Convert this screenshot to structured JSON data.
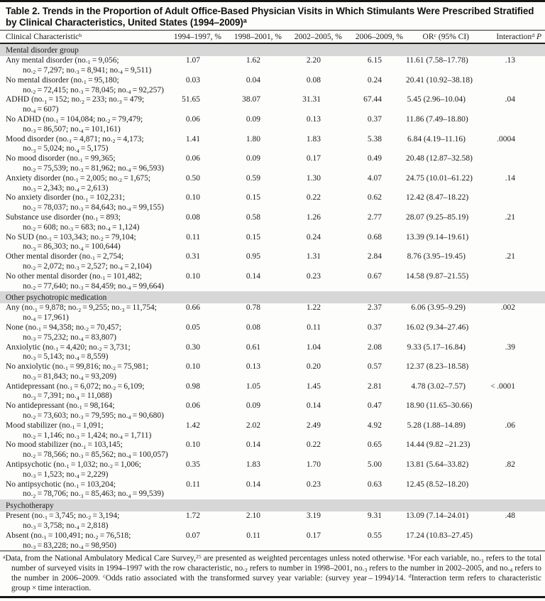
{
  "colors": {
    "section-bg": "#d7d7d7",
    "rule": "#161616",
    "text": "#1b1b1b"
  },
  "table": {
    "title": "Table 2. Trends in the Proportion of Adult Office-Based Physician Visits in Which Stimulants Were Prescribed Stratified by Clinical Characteristics, United States (1994–2009)^a^",
    "columns": [
      "Clinical Characteristic^b^",
      "1994–1997, %",
      "1998–2001, %",
      "2002–2005, %",
      "2006–2009, %",
      "OR^c^ (95% CI)",
      "Interaction^d^ *P*"
    ],
    "sections": [
      {
        "header": "Mental disorder group",
        "rows": [
          {
            "label_line1": "Any mental disorder (no.~1~ = 9,056;",
            "label_line2": "no.~2~ = 7,297; no.~3~ = 8,941; no.~4~ = 9,511)",
            "v1": "1.07",
            "v2": "1.62",
            "v3": "2.20",
            "v4": "6.15",
            "or": "11.61 (7.58–17.78)",
            "p": ".13"
          },
          {
            "label_line1": "No mental disorder (no.~1~ = 95,180;",
            "label_line2": "no.~2~ = 72,415; no.~3~ = 78,045; no.~4~ = 92,257)",
            "v1": "0.03",
            "v2": "0.04",
            "v3": "0.08",
            "v4": "0.24",
            "or": "20.41 (10.92–38.18)",
            "p": ""
          },
          {
            "label_line1": "ADHD (no.~1~ = 152; no.~2~ = 233; no.~3~ = 479;",
            "label_line2": "no.~4~ = 607)",
            "v1": "51.65",
            "v2": "38.07",
            "v3": "31.31",
            "v4": "67.44",
            "or": "5.45 (2.96–10.04)",
            "p": ".04"
          },
          {
            "label_line1": "No ADHD (no.~1~ = 104,084; no.~2~ = 79,479;",
            "label_line2": "no.~3~ = 86,507; no.~4~ = 101,161)",
            "v1": "0.06",
            "v2": "0.09",
            "v3": "0.13",
            "v4": "0.37",
            "or": "11.86 (7.49–18.80)",
            "p": ""
          },
          {
            "label_line1": "Mood disorder (no.~1~ = 4,871; no.~2~ = 4,173;",
            "label_line2": "no.~3~ = 5,024; no.~4~ = 5,175)",
            "v1": "1.41",
            "v2": "1.80",
            "v3": "1.83",
            "v4": "5.38",
            "or": "6.84 (4.19–11.16)",
            "p": ".0004"
          },
          {
            "label_line1": "No mood disorder (no.~1~ = 99,365;",
            "label_line2": "no.~2~ = 75,539; no.~3~ = 81,962; no.~4~ = 96,593)",
            "v1": "0.06",
            "v2": "0.09",
            "v3": "0.17",
            "v4": "0.49",
            "or": "20.48 (12.87–32.58)",
            "p": ""
          },
          {
            "label_line1": "Anxiety disorder (no.~1~ = 2,005; no.~2~ = 1,675;",
            "label_line2": "no.~3~ = 2,343; no.~4~ = 2,613)",
            "v1": "0.50",
            "v2": "0.59",
            "v3": "1.30",
            "v4": "4.07",
            "or": "24.75 (10.01–61.22)",
            "p": ".14"
          },
          {
            "label_line1": "No anxiety disorder (no.~1~ = 102,231;",
            "label_line2": "no.~2~ = 78,037; no.~3~ = 84,643; no.~4~ = 99,155)",
            "v1": "0.10",
            "v2": "0.15",
            "v3": "0.22",
            "v4": "0.62",
            "or": "12.42 (8.47–18.22)",
            "p": ""
          },
          {
            "label_line1": "Substance use disorder (no.~1~ = 893;",
            "label_line2": "no.~2~ = 608; no.~3~ = 683; no.~4~ = 1,124)",
            "v1": "0.08",
            "v2": "0.58",
            "v3": "1.26",
            "v4": "2.77",
            "or": "28.07 (9.25–85.19)",
            "p": ".21"
          },
          {
            "label_line1": "No SUD (no.~1~ = 103,343; no.~2~ = 79,104;",
            "label_line2": "no.~3~ = 86,303; no.~4~ = 100,644)",
            "v1": "0.11",
            "v2": "0.15",
            "v3": "0.24",
            "v4": "0.68",
            "or": "13.39 (9.14–19.61)",
            "p": ""
          },
          {
            "label_line1": "Other mental disorder (no.~1~ = 2,754;",
            "label_line2": "no.~2~ = 2,072; no.~3~ = 2,527; no.~4~ = 2,104)",
            "v1": "0.31",
            "v2": "0.95",
            "v3": "1.31",
            "v4": "2.84",
            "or": "8.76 (3.95–19.45)",
            "p": ".21"
          },
          {
            "label_line1": "No other mental disorder (no.~1~ = 101,482;",
            "label_line2": "no.~2~ = 77,640; no.~3~ = 84,459; no.~4~ = 99,664)",
            "v1": "0.10",
            "v2": "0.14",
            "v3": "0.23",
            "v4": "0.67",
            "or": "14.58 (9.87–21.55)",
            "p": ""
          }
        ]
      },
      {
        "header": "Other psychotropic medication",
        "rows": [
          {
            "label_line1": "Any (no.~1~ = 9,878; no.~2~ = 9,255; no.~3~ = 11,754;",
            "label_line2": "no.~4~ = 17,961)",
            "v1": "0.66",
            "v2": "0.78",
            "v3": "1.22",
            "v4": "2.37",
            "or": "6.06 (3.95–9.29)",
            "p": ".002"
          },
          {
            "label_line1": "None (no.~1~ = 94,358; no.~2~ = 70,457;",
            "label_line2": "no.~3~ = 75,232; no.~4~ = 83,807)",
            "v1": "0.05",
            "v2": "0.08",
            "v3": "0.11",
            "v4": "0.37",
            "or": "16.02 (9.34–27.46)",
            "p": ""
          },
          {
            "label_line1": "Anxiolytic (no.~1~ = 4,420; no.~2~ = 3,731;",
            "label_line2": "no.~3~ = 5,143; no.~4~ = 8,559)",
            "v1": "0.30",
            "v2": "0.61",
            "v3": "1.04",
            "v4": "2.08",
            "or": "9.33 (5.17–16.84)",
            "p": ".39"
          },
          {
            "label_line1": "No anxiolytic (no.~1~ = 99,816; no.~2~ = 75,981;",
            "label_line2": "no.~3~ = 81,843; no.~4~ = 93,209)",
            "v1": "0.10",
            "v2": "0.13",
            "v3": "0.20",
            "v4": "0.57",
            "or": "12.37 (8.23–18.58)",
            "p": ""
          },
          {
            "label_line1": "Antidepressant (no.~1~ = 6,072; no.~2~ = 6,109;",
            "label_line2": "no.~3~ = 7,391; no.~4~ = 11,088)",
            "v1": "0.98",
            "v2": "1.05",
            "v3": "1.45",
            "v4": "2.81",
            "or": "4.78 (3.02–7.57)",
            "p": "< .0001"
          },
          {
            "label_line1": "No antidepressant (no.~1~ = 98,164;",
            "label_line2": "no.~2~ = 73,603; no.~3~ = 79,595; no.~4~ = 90,680)",
            "v1": "0.06",
            "v2": "0.09",
            "v3": "0.14",
            "v4": "0.47",
            "or": "18.90 (11.65–30.66)",
            "p": ""
          },
          {
            "label_line1": "Mood stabilizer (no.~1~ = 1,091;",
            "label_line2": "no.~2~ = 1,146; no.~3~ = 1,424; no.~4~ = 1,711)",
            "v1": "1.42",
            "v2": "2.02",
            "v3": "2.49",
            "v4": "4.92",
            "or": "5.28 (1.88–14.89)",
            "p": ".06"
          },
          {
            "label_line1": "No mood stabilizer (no.~1~ = 103,145;",
            "label_line2": "no.~2~ = 78,566; no.~3~ = 85,562; no.~4~ = 100,057)",
            "v1": "0.10",
            "v2": "0.14",
            "v3": "0.22",
            "v4": "0.65",
            "or": "14.44 (9.82 –21.23)",
            "p": ""
          },
          {
            "label_line1": "Antipsychotic (no.~1~ = 1,032; no.~2~ = 1,006;",
            "label_line2": "no.~3~ = 1,523; no.~4~ = 2,229)",
            "v1": "0.35",
            "v2": "1.83",
            "v3": "1.70",
            "v4": "5.00",
            "or": "13.81 (5.64–33.82)",
            "p": ".82"
          },
          {
            "label_line1": "No antipsychotic (no.~1~ = 103,204;",
            "label_line2": "no.~2~ = 78,706; no.~3~ = 85,463; no.~4~ = 99,539)",
            "v1": "0.11",
            "v2": "0.14",
            "v3": "0.23",
            "v4": "0.63",
            "or": "12.45 (8.52–18.20)",
            "p": ""
          }
        ]
      },
      {
        "header": "Psychotherapy",
        "rows": [
          {
            "label_line1": "Present (no.~1~ = 3,745; no.~2~ = 3,194;",
            "label_line2": "no.~3~ = 3,758; no.~4~ = 2,818)",
            "v1": "1.72",
            "v2": "2.10",
            "v3": "3.19",
            "v4": "9.31",
            "or": "13.09 (7.14–24.01)",
            "p": ".48"
          },
          {
            "label_line1": "Absent (no.~1~ = 100,491; no.~2~ = 76,518;",
            "label_line2": "no.~3~ = 83,228; no.~4~ = 98,950)",
            "v1": "0.07",
            "v2": "0.11",
            "v3": "0.17",
            "v4": "0.55",
            "or": "17.24 (10.83–27.45)",
            "p": ""
          }
        ]
      }
    ],
    "footnote": "^a^Data, from the National Ambulatory Medical Care Survey,^25^ are presented as weighted percentages unless noted otherwise. ^b^For each variable, no.~1~ refers to the total number of surveyed visits in 1994–1997 with the row characteristic, no.~2~ refers to number in 1998–2001, no.~3~ refers to the number in 2002–2005, and no.~4~ refers to the number in 2006–2009. ^c^Odds ratio associated with the transformed survey year variable: (survey year – 1994)/14. ^d^Interaction term refers to characteristic group × time interaction."
  }
}
